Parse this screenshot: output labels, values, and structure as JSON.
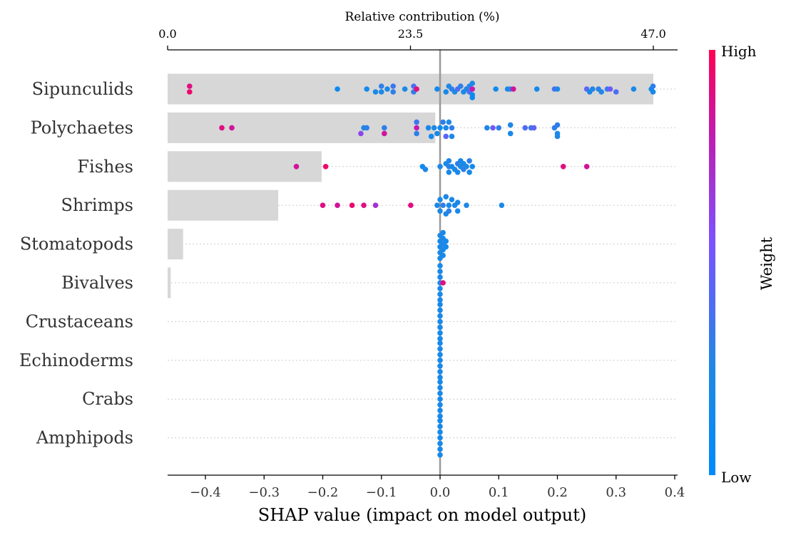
{
  "chart_data": {
    "type": "scatter",
    "subtype": "shap-beeswarm-with-importance-bars",
    "xlabel": "SHAP value (impact on model output)",
    "xlim": [
      -0.465,
      0.405
    ],
    "xticks": [
      -0.4,
      -0.3,
      -0.2,
      -0.1,
      0.0,
      0.1,
      0.2,
      0.3,
      0.4
    ],
    "xtick_labels": [
      "−0.4",
      "−0.3",
      "−0.2",
      "−0.1",
      "0.0",
      "0.1",
      "0.2",
      "0.3",
      "0.4"
    ],
    "top_axis": {
      "label": "Relative contribution (%)",
      "range": [
        0.0,
        47.0
      ],
      "ticks": [
        0.0,
        23.5,
        47.0
      ],
      "tick_labels": [
        "0.0",
        "23.5",
        "47.0"
      ]
    },
    "categories": [
      "Sipunculids",
      "Polychaetes",
      "Fishes",
      "Shrimps",
      "Stomatopods",
      "Bivalves",
      "Crustaceans",
      "Echinoderms",
      "Crabs",
      "Amphipods"
    ],
    "bar_values_percent": [
      47.0,
      25.9,
      14.9,
      10.7,
      1.5,
      0.3,
      0.0,
      0.0,
      0.0,
      0.0
    ],
    "reference_line_x": 0.0,
    "colorbar": {
      "title": "Weight",
      "high_label": "High",
      "low_label": "Low",
      "low_color": "#1e88e5",
      "high_color": "#ff0d57"
    },
    "grid": "horizontal dotted row lines",
    "points": [
      [
        [
          -0.427,
          0.05,
          0.95
        ],
        [
          -0.427,
          -0.05,
          0.9
        ],
        [
          -0.175,
          0,
          0.1
        ],
        [
          -0.125,
          0,
          0.15
        ],
        [
          -0.11,
          0.05,
          0.2
        ],
        [
          -0.1,
          -0.05,
          0.3
        ],
        [
          -0.1,
          0.05,
          0.25
        ],
        [
          -0.09,
          0,
          0.2
        ],
        [
          -0.08,
          -0.05,
          0.35
        ],
        [
          -0.08,
          0.05,
          0.3
        ],
        [
          -0.06,
          0,
          0.2
        ],
        [
          -0.045,
          -0.05,
          0.4
        ],
        [
          -0.045,
          0.05,
          0.3
        ],
        [
          -0.04,
          0,
          0.9
        ],
        [
          -0.005,
          0,
          0.15
        ],
        [
          0.01,
          0.05,
          0.2
        ],
        [
          0.015,
          -0.05,
          0.25
        ],
        [
          0.02,
          0,
          0.3
        ],
        [
          0.025,
          0.05,
          0.25
        ],
        [
          0.03,
          0,
          0.4
        ],
        [
          0.035,
          -0.05,
          0.3
        ],
        [
          0.04,
          0.05,
          0.2
        ],
        [
          0.045,
          0,
          0.25
        ],
        [
          0.05,
          -0.05,
          0.3
        ],
        [
          0.05,
          0.05,
          0.4
        ],
        [
          0.055,
          0,
          0.8
        ],
        [
          0.055,
          0.1,
          0.15
        ],
        [
          0.055,
          -0.1,
          0.2
        ],
        [
          0.055,
          0.15,
          0.1
        ],
        [
          0.095,
          0,
          0.15
        ],
        [
          0.115,
          0,
          0.2
        ],
        [
          0.12,
          0,
          0.3
        ],
        [
          0.125,
          0,
          0.85
        ],
        [
          0.165,
          0,
          0.15
        ],
        [
          0.195,
          0,
          0.4
        ],
        [
          0.2,
          0,
          0.2
        ],
        [
          0.25,
          0,
          0.45
        ],
        [
          0.255,
          0.05,
          0.2
        ],
        [
          0.26,
          0,
          0.25
        ],
        [
          0.27,
          0,
          0.3
        ],
        [
          0.275,
          0.05,
          0.25
        ],
        [
          0.285,
          0,
          0.35
        ],
        [
          0.29,
          0,
          0.5
        ],
        [
          0.3,
          0.05,
          0.4
        ],
        [
          0.33,
          0,
          0.2
        ],
        [
          0.36,
          0,
          0.15
        ],
        [
          0.363,
          0.05,
          0.2
        ],
        [
          0.363,
          -0.05,
          0.3
        ]
      ],
      [
        [
          -0.372,
          0,
          0.9
        ],
        [
          -0.355,
          0,
          0.85
        ],
        [
          -0.135,
          0.1,
          0.6
        ],
        [
          -0.13,
          0,
          0.25
        ],
        [
          -0.125,
          0,
          0.3
        ],
        [
          -0.095,
          0.1,
          0.85
        ],
        [
          -0.095,
          0,
          0.3
        ],
        [
          -0.04,
          0.1,
          0.3
        ],
        [
          -0.04,
          0,
          0.8
        ],
        [
          -0.04,
          -0.1,
          0.35
        ],
        [
          -0.02,
          0,
          0.2
        ],
        [
          -0.015,
          0.15,
          0.15
        ],
        [
          -0.01,
          0,
          0.25
        ],
        [
          -0.005,
          0.1,
          0.2
        ],
        [
          0,
          0,
          0.15
        ],
        [
          0.005,
          -0.1,
          0.3
        ],
        [
          0.01,
          0,
          0.2
        ],
        [
          0.01,
          0.15,
          0.45
        ],
        [
          0.015,
          -0.1,
          0.25
        ],
        [
          0.02,
          0,
          0.3
        ],
        [
          0.02,
          0.15,
          0.2
        ],
        [
          0.08,
          0,
          0.25
        ],
        [
          0.09,
          0,
          0.5
        ],
        [
          0.1,
          0,
          0.3
        ],
        [
          0.12,
          0.1,
          0.2
        ],
        [
          0.12,
          -0.05,
          0.25
        ],
        [
          0.145,
          0,
          0.4
        ],
        [
          0.155,
          0,
          0.35
        ],
        [
          0.16,
          0,
          0.45
        ],
        [
          0.195,
          0,
          0.3
        ],
        [
          0.2,
          0.1,
          0.2
        ],
        [
          0.2,
          0.15,
          0.25
        ],
        [
          0.2,
          -0.05,
          0.3
        ]
      ],
      [
        [
          -0.245,
          0,
          0.85
        ],
        [
          -0.195,
          0,
          0.95
        ],
        [
          -0.03,
          0,
          0.15
        ],
        [
          -0.025,
          0.05,
          0.2
        ],
        [
          0,
          0,
          0.25
        ],
        [
          0.01,
          -0.05,
          0.2
        ],
        [
          0.015,
          0,
          0.3
        ],
        [
          0.015,
          0.1,
          0.2
        ],
        [
          0.015,
          -0.1,
          0.25
        ],
        [
          0.02,
          0,
          0.2
        ],
        [
          0.025,
          0.05,
          0.25
        ],
        [
          0.03,
          -0.05,
          0.3
        ],
        [
          0.03,
          0.1,
          0.2
        ],
        [
          0.035,
          0,
          0.25
        ],
        [
          0.035,
          -0.1,
          0.2
        ],
        [
          0.04,
          0.05,
          0.3
        ],
        [
          0.04,
          -0.05,
          0.2
        ],
        [
          0.045,
          0,
          0.25
        ],
        [
          0.05,
          0.1,
          0.2
        ],
        [
          0.05,
          -0.1,
          0.3
        ],
        [
          0.055,
          0,
          0.2
        ],
        [
          0.21,
          0,
          0.9
        ],
        [
          0.25,
          0,
          0.85
        ]
      ],
      [
        [
          -0.2,
          0,
          0.9
        ],
        [
          -0.175,
          0,
          0.85
        ],
        [
          -0.15,
          0,
          0.95
        ],
        [
          -0.13,
          0,
          0.9
        ],
        [
          -0.11,
          0,
          0.7
        ],
        [
          -0.05,
          0,
          0.9
        ],
        [
          -0.005,
          0,
          0.2
        ],
        [
          0,
          0.1,
          0.25
        ],
        [
          0,
          -0.1,
          0.2
        ],
        [
          0.005,
          0,
          0.3
        ],
        [
          0.01,
          0.15,
          0.2
        ],
        [
          0.01,
          -0.15,
          0.25
        ],
        [
          0.015,
          0,
          0.2
        ],
        [
          0.015,
          0.1,
          0.3
        ],
        [
          0.02,
          -0.1,
          0.2
        ],
        [
          0.025,
          0,
          0.25
        ],
        [
          0.03,
          0.1,
          0.2
        ],
        [
          0.03,
          -0.05,
          0.2
        ],
        [
          0.045,
          0,
          0.25
        ],
        [
          0.105,
          0,
          0.2
        ]
      ],
      [
        [
          0,
          0.25,
          0.2
        ],
        [
          0.005,
          0.2,
          0.2
        ],
        [
          0,
          0.15,
          0.25
        ],
        [
          0.005,
          0.1,
          0.2
        ],
        [
          0,
          0.05,
          0.2
        ],
        [
          0.005,
          0,
          0.25
        ],
        [
          0,
          -0.05,
          0.2
        ],
        [
          0.005,
          -0.1,
          0.2
        ],
        [
          0,
          -0.15,
          0.25
        ],
        [
          0.005,
          -0.2,
          0.2
        ],
        [
          0.01,
          0.05,
          0.2
        ],
        [
          0.01,
          -0.05,
          0.2
        ]
      ],
      [
        [
          0,
          0.2,
          0.2
        ],
        [
          0,
          0.1,
          0.2
        ],
        [
          0,
          0,
          0.25
        ],
        [
          0,
          -0.1,
          0.2
        ],
        [
          0,
          -0.2,
          0.2
        ],
        [
          0,
          0.3,
          0.2
        ],
        [
          0,
          -0.3,
          0.2
        ],
        [
          0.005,
          0,
          0.9
        ]
      ],
      [
        [
          0,
          0.3,
          0.2
        ],
        [
          0,
          0.2,
          0.2
        ],
        [
          0,
          0.1,
          0.2
        ],
        [
          0,
          0,
          0.2
        ],
        [
          0,
          -0.1,
          0.2
        ],
        [
          0,
          -0.2,
          0.2
        ],
        [
          0,
          -0.3,
          0.2
        ]
      ],
      [
        [
          0,
          0.3,
          0.2
        ],
        [
          0,
          0.2,
          0.2
        ],
        [
          0,
          0.1,
          0.2
        ],
        [
          0,
          0,
          0.2
        ],
        [
          0,
          -0.1,
          0.2
        ],
        [
          0,
          -0.2,
          0.2
        ],
        [
          0,
          -0.3,
          0.2
        ]
      ],
      [
        [
          0,
          0.3,
          0.2
        ],
        [
          0,
          0.2,
          0.2
        ],
        [
          0,
          0.1,
          0.2
        ],
        [
          0,
          0,
          0.2
        ],
        [
          0,
          -0.1,
          0.2
        ],
        [
          0,
          -0.2,
          0.2
        ],
        [
          0,
          -0.3,
          0.2
        ]
      ],
      [
        [
          0,
          0.3,
          0.2
        ],
        [
          0,
          0.2,
          0.2
        ],
        [
          0,
          0.1,
          0.2
        ],
        [
          0,
          0,
          0.2
        ],
        [
          0,
          -0.1,
          0.2
        ],
        [
          0,
          -0.2,
          0.2
        ],
        [
          0,
          -0.3,
          0.2
        ]
      ]
    ]
  }
}
